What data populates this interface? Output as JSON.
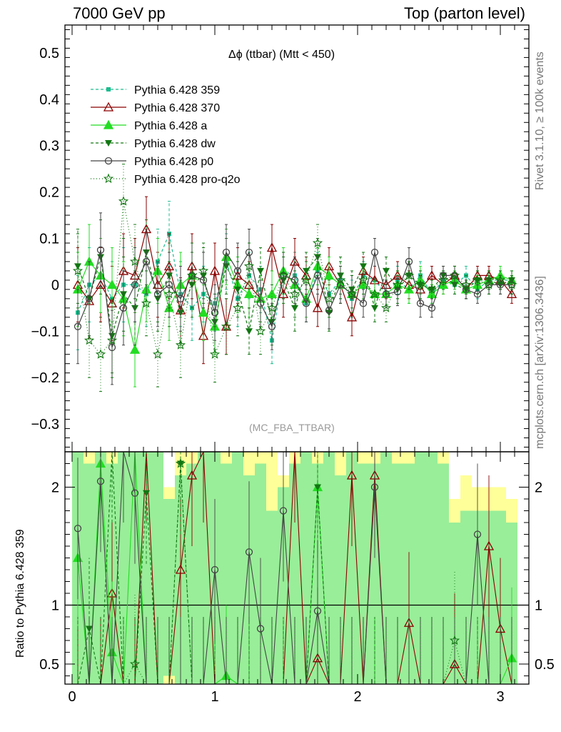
{
  "header": {
    "left": "7000 GeV pp",
    "right": "Top (parton level)",
    "side_events": "Rivet 3.1.10, ≥ 100k events",
    "side_mcplots": "mcplots.cern.ch [arXiv:1306.3436]"
  },
  "chart_data": {
    "type": "line",
    "title": "Δϕ (ttbar) (Mtt < 450)",
    "analysis_id": "(MC_FBA_TTBAR)",
    "xlim": [
      -0.05,
      3.2
    ],
    "main_ylim": [
      -0.36,
      0.56
    ],
    "ratio_ylim": [
      0.33,
      2.3
    ],
    "ratio_ylabel": "Ratio to Pythia 6.428 359",
    "x_ticks": [
      {
        "v": 0,
        "label": "0"
      },
      {
        "v": 1,
        "label": "1"
      },
      {
        "v": 2,
        "label": "2"
      },
      {
        "v": 3,
        "label": "3"
      }
    ],
    "main_y_ticks": [
      {
        "v": -0.3,
        "label": "−0.3"
      },
      {
        "v": -0.2,
        "label": "−0.2"
      },
      {
        "v": -0.1,
        "label": "−0.1"
      },
      {
        "v": 0,
        "label": "0"
      },
      {
        "v": 0.1,
        "label": "0.1"
      },
      {
        "v": 0.2,
        "label": "0.2"
      },
      {
        "v": 0.3,
        "label": "0.3"
      },
      {
        "v": 0.4,
        "label": "0.4"
      },
      {
        "v": 0.5,
        "label": "0.5"
      }
    ],
    "ratio_y_ticks": [
      {
        "v": 0.5,
        "label": "0.5"
      },
      {
        "v": 1,
        "label": "1"
      },
      {
        "v": 2,
        "label": "2"
      }
    ],
    "x": [
      0.04,
      0.12,
      0.2,
      0.28,
      0.36,
      0.44,
      0.52,
      0.6,
      0.68,
      0.76,
      0.84,
      0.92,
      1.0,
      1.08,
      1.16,
      1.24,
      1.32,
      1.4,
      1.48,
      1.56,
      1.64,
      1.72,
      1.8,
      1.88,
      1.96,
      2.04,
      2.12,
      2.2,
      2.28,
      2.36,
      2.44,
      2.52,
      2.6,
      2.68,
      2.76,
      2.84,
      2.92,
      3.0,
      3.08
    ],
    "series": [
      {
        "name": "Pythia 6.428 359",
        "color": "#1bbc8e",
        "dash": "4,3",
        "marker": "square",
        "values": [
          -0.06,
          0.0,
          0.02,
          -0.03,
          0.0,
          0.0,
          -0.02,
          0.05,
          0.11,
          -0.02,
          -0.05,
          -0.02,
          -0.04,
          0.05,
          -0.03,
          0.02,
          -0.01,
          -0.12,
          0.03,
          0.02,
          -0.04,
          0.03,
          -0.02,
          0.01,
          -0.03,
          0.02,
          0.01,
          -0.02,
          0.01,
          -0.01,
          0.02,
          -0.02,
          0.01,
          0.0,
          0.02,
          -0.01,
          0.01,
          0.01,
          0.01
        ],
        "errors": [
          0.08,
          0.08,
          0.08,
          0.08,
          0.08,
          0.08,
          0.07,
          0.07,
          0.07,
          0.07,
          0.07,
          0.06,
          0.06,
          0.06,
          0.06,
          0.05,
          0.05,
          0.05,
          0.05,
          0.05,
          0.04,
          0.04,
          0.04,
          0.04,
          0.04,
          0.03,
          0.03,
          0.03,
          0.03,
          0.03,
          0.03,
          0.02,
          0.02,
          0.02,
          0.02,
          0.02,
          0.02,
          0.02,
          0.02
        ]
      },
      {
        "name": "Pythia 6.428 370",
        "color": "#8b0000",
        "dash": "",
        "marker": "triangle-open",
        "values": [
          0.0,
          -0.035,
          0.0,
          -0.04,
          0.03,
          0.02,
          0.12,
          0.0,
          0.04,
          -0.055,
          0.04,
          -0.11,
          0.03,
          -0.09,
          0.02,
          0.0,
          -0.03,
          0.08,
          -0.02,
          0.05,
          0.02,
          -0.05,
          0.04,
          0.0,
          -0.07,
          0.03,
          0.01,
          0.0,
          0.02,
          0.0,
          -0.01,
          0.02,
          0.0,
          0.02,
          -0.01,
          0.02,
          0.02,
          0.01,
          -0.02
        ],
        "errors": [
          0.08,
          0.08,
          0.08,
          0.08,
          0.08,
          0.08,
          0.07,
          0.07,
          0.07,
          0.07,
          0.07,
          0.06,
          0.06,
          0.06,
          0.06,
          0.05,
          0.05,
          0.05,
          0.05,
          0.05,
          0.04,
          0.04,
          0.04,
          0.04,
          0.04,
          0.03,
          0.03,
          0.03,
          0.03,
          0.03,
          0.03,
          0.02,
          0.02,
          0.02,
          0.02,
          0.02,
          0.02,
          0.02,
          0.02
        ]
      },
      {
        "name": "Pythia 6.428 a",
        "color": "#22dd22",
        "dash": "",
        "marker": "triangle",
        "values": [
          -0.01,
          0.05,
          0.02,
          0.0,
          -0.03,
          -0.14,
          -0.01,
          0.03,
          -0.05,
          0.0,
          0.02,
          -0.06,
          -0.09,
          0.06,
          0.0,
          -0.02,
          -0.03,
          -0.02,
          0.03,
          0.0,
          -0.03,
          0.04,
          0.02,
          0.0,
          -0.02,
          0.0,
          -0.02,
          -0.02,
          0.0,
          -0.01,
          0.01,
          -0.02,
          0.0,
          0.01,
          -0.01,
          0.0,
          0.01,
          0.02,
          0.01
        ],
        "errors": [
          0.08,
          0.08,
          0.08,
          0.08,
          0.08,
          0.08,
          0.07,
          0.07,
          0.07,
          0.07,
          0.07,
          0.06,
          0.06,
          0.06,
          0.06,
          0.05,
          0.05,
          0.05,
          0.05,
          0.05,
          0.04,
          0.04,
          0.04,
          0.04,
          0.04,
          0.03,
          0.03,
          0.03,
          0.03,
          0.03,
          0.03,
          0.02,
          0.02,
          0.02,
          0.02,
          0.02,
          0.02,
          0.02,
          0.02
        ]
      },
      {
        "name": "Pythia 6.428 dw",
        "color": "#117711",
        "dash": "4,3",
        "marker": "triangle-down",
        "values": [
          0.04,
          -0.03,
          0.06,
          -0.11,
          -0.02,
          -0.05,
          0.07,
          -0.03,
          0.02,
          -0.06,
          0.0,
          0.02,
          -0.08,
          0.04,
          -0.01,
          -0.1,
          0.03,
          -0.08,
          0.01,
          -0.05,
          0.03,
          0.06,
          -0.06,
          0.02,
          -0.01,
          0.04,
          -0.05,
          0.03,
          -0.01,
          0.02,
          0.0,
          -0.01,
          0.02,
          0.0,
          -0.01,
          0.01,
          0.01,
          0.0,
          0.01
        ],
        "errors": [
          0.08,
          0.08,
          0.08,
          0.08,
          0.08,
          0.08,
          0.07,
          0.07,
          0.07,
          0.07,
          0.07,
          0.06,
          0.06,
          0.06,
          0.06,
          0.05,
          0.05,
          0.05,
          0.05,
          0.05,
          0.04,
          0.04,
          0.04,
          0.04,
          0.04,
          0.03,
          0.03,
          0.03,
          0.03,
          0.03,
          0.03,
          0.02,
          0.02,
          0.02,
          0.02,
          0.02,
          0.02,
          0.02,
          0.02
        ]
      },
      {
        "name": "Pythia 6.428 p0",
        "color": "#444444",
        "dash": "",
        "marker": "circle-open",
        "values": [
          -0.09,
          -0.03,
          0.075,
          -0.135,
          -0.05,
          0.0,
          0.05,
          -0.02,
          0.0,
          -0.03,
          0.02,
          0.01,
          -0.06,
          0.07,
          0.03,
          0.07,
          -0.04,
          -0.09,
          0.02,
          0.01,
          -0.04,
          0.02,
          -0.055,
          0.0,
          -0.02,
          -0.04,
          0.07,
          -0.02,
          -0.015,
          0.05,
          -0.04,
          -0.05,
          0.02,
          0.02,
          -0.01,
          -0.02,
          0.0,
          0.0,
          0.0
        ],
        "errors": [
          0.08,
          0.08,
          0.08,
          0.08,
          0.08,
          0.08,
          0.07,
          0.07,
          0.07,
          0.07,
          0.07,
          0.06,
          0.06,
          0.06,
          0.06,
          0.05,
          0.05,
          0.05,
          0.05,
          0.05,
          0.04,
          0.04,
          0.04,
          0.04,
          0.04,
          0.03,
          0.03,
          0.03,
          0.03,
          0.03,
          0.03,
          0.02,
          0.02,
          0.02,
          0.02,
          0.02,
          0.02,
          0.02,
          0.02
        ]
      },
      {
        "name": "Pythia 6.428 pro-q2o",
        "color": "#117711",
        "dash": "1,3",
        "marker": "star",
        "values": [
          0.03,
          -0.12,
          -0.15,
          -0.12,
          0.18,
          0.05,
          -0.04,
          -0.15,
          -0.02,
          -0.13,
          0.02,
          0.03,
          -0.15,
          -0.09,
          -0.05,
          0.04,
          -0.1,
          -0.05,
          0.02,
          -0.02,
          0.01,
          0.09,
          -0.03,
          0.01,
          -0.02,
          0.01,
          -0.02,
          -0.05,
          0.0,
          0.02,
          0.0,
          -0.01,
          0.01,
          0.02,
          0.0,
          0.01,
          0.0,
          0.01,
          0.0
        ],
        "errors": [
          0.08,
          0.08,
          0.08,
          0.08,
          0.08,
          0.08,
          0.07,
          0.07,
          0.07,
          0.07,
          0.07,
          0.06,
          0.06,
          0.06,
          0.06,
          0.05,
          0.05,
          0.05,
          0.05,
          0.05,
          0.04,
          0.04,
          0.04,
          0.04,
          0.04,
          0.03,
          0.03,
          0.03,
          0.03,
          0.03,
          0.03,
          0.02,
          0.02,
          0.02,
          0.02,
          0.02,
          0.02,
          0.02,
          0.02
        ]
      }
    ],
    "ratio": {
      "reference": "Pythia 6.428 359",
      "band_outer_low": [
        0.3,
        0.3,
        0.3,
        0.3,
        0.3,
        0.3,
        0.3,
        0.3,
        0.3,
        0.3,
        0.3,
        0.3,
        0.3,
        0.3,
        0.3,
        0.3,
        0.3,
        0.6,
        0.3,
        0.3,
        0.3,
        0.3,
        0.3,
        0.3,
        0.3,
        0.3,
        0.3,
        0.3,
        0.3,
        0.3,
        0.3,
        0.3,
        0.3,
        0.3,
        0.3,
        0.3,
        0.3,
        0.3,
        0.3
      ],
      "band_outer_high": [
        2.3,
        2.3,
        2.3,
        2.3,
        2.3,
        2.3,
        2.3,
        2.3,
        2.0,
        2.3,
        2.3,
        2.3,
        2.3,
        2.3,
        2.3,
        2.3,
        2.3,
        2.3,
        2.1,
        2.3,
        2.3,
        2.3,
        2.3,
        2.3,
        2.3,
        2.3,
        2.3,
        2.3,
        2.3,
        2.3,
        2.3,
        2.3,
        2.3,
        1.9,
        2.1,
        2.0,
        2.0,
        2.0,
        1.9
      ],
      "band_inner_low": [
        0.3,
        0.3,
        0.3,
        0.3,
        0.3,
        0.3,
        0.3,
        0.3,
        0.4,
        0.3,
        0.3,
        0.3,
        0.3,
        0.3,
        0.3,
        0.3,
        0.3,
        0.3,
        0.3,
        0.3,
        0.3,
        0.3,
        0.3,
        0.3,
        0.3,
        0.3,
        0.3,
        0.3,
        0.3,
        0.3,
        0.3,
        0.3,
        0.3,
        0.3,
        0.3,
        0.3,
        0.3,
        0.3,
        0.3
      ],
      "band_inner_high": [
        2.3,
        2.2,
        2.3,
        2.2,
        2.3,
        2.3,
        2.3,
        2.3,
        1.9,
        2.1,
        2.2,
        2.3,
        2.3,
        2.2,
        2.3,
        2.1,
        2.2,
        1.8,
        2.0,
        2.2,
        2.3,
        2.2,
        2.3,
        2.1,
        2.3,
        2.2,
        2.2,
        2.3,
        2.2,
        2.2,
        2.3,
        2.3,
        2.2,
        1.7,
        1.8,
        1.8,
        1.8,
        1.8,
        1.7
      ],
      "series": [
        {
          "name": "Pythia 6.428 370",
          "values": [
            0.3,
            0.3,
            0.3,
            1.1,
            0.3,
            0.3,
            2.3,
            0.3,
            0.3,
            1.3,
            2.1,
            2.3,
            0.3,
            0.3,
            0.3,
            0.3,
            0.3,
            0.3,
            0.3,
            2.3,
            0.3,
            0.55,
            0.3,
            0.3,
            2.1,
            0.3,
            2.1,
            0.3,
            0.3,
            0.85,
            0.3,
            0.3,
            0.3,
            0.5,
            0.3,
            0.3,
            1.5,
            0.8,
            0.3
          ]
        },
        {
          "name": "Pythia 6.428 a",
          "values": [
            1.4,
            0.3,
            2.2,
            0.6,
            0.3,
            2.3,
            0.3,
            0.3,
            0.3,
            0.3,
            0.3,
            0.3,
            0.3,
            0.4,
            0.3,
            0.3,
            0.3,
            0.3,
            0.3,
            0.3,
            0.3,
            2.0,
            0.3,
            0.3,
            0.3,
            0.3,
            0.3,
            0.3,
            0.3,
            0.3,
            0.3,
            0.3,
            0.3,
            0.3,
            0.3,
            0.3,
            0.3,
            0.3,
            0.55
          ]
        },
        {
          "name": "Pythia 6.428 dw",
          "values": [
            0.3,
            0.8,
            0.3,
            2.3,
            0.3,
            0.3,
            1.95,
            0.3,
            0.3,
            2.2,
            0.3,
            0.3,
            0.3,
            0.3,
            0.3,
            0.3,
            0.3,
            0.3,
            0.3,
            0.3,
            0.3,
            2.0,
            0.3,
            0.3,
            0.3,
            0.3,
            0.3,
            0.3,
            0.3,
            0.3,
            0.3,
            0.3,
            0.3,
            0.3,
            0.3,
            0.3,
            0.3,
            0.3,
            0.3
          ]
        },
        {
          "name": "Pythia 6.428 p0",
          "values": [
            1.65,
            0.3,
            2.05,
            0.3,
            2.3,
            1.95,
            0.3,
            0.3,
            0.3,
            0.3,
            0.3,
            0.3,
            1.3,
            0.3,
            0.3,
            1.45,
            0.8,
            0.3,
            1.8,
            0.3,
            0.3,
            0.95,
            0.3,
            0.3,
            0.3,
            0.3,
            2.0,
            0.3,
            0.3,
            0.3,
            0.3,
            0.3,
            0.3,
            0.3,
            0.3,
            1.6,
            0.3,
            0.3,
            0.3
          ]
        },
        {
          "name": "Pythia 6.428 pro-q2o",
          "values": [
            0.3,
            0.3,
            0.3,
            0.3,
            0.3,
            0.5,
            0.3,
            0.3,
            0.3,
            2.2,
            0.3,
            0.3,
            0.3,
            0.3,
            0.3,
            0.3,
            0.3,
            0.3,
            0.3,
            0.3,
            0.3,
            0.3,
            0.3,
            0.3,
            0.3,
            0.3,
            0.3,
            0.3,
            0.3,
            0.3,
            0.3,
            0.3,
            0.3,
            0.7,
            0.3,
            0.3,
            0.3,
            0.3,
            0.3
          ]
        }
      ]
    },
    "colors": {
      "band_outer": "#ffff99",
      "band_inner": "#99ee99"
    }
  }
}
